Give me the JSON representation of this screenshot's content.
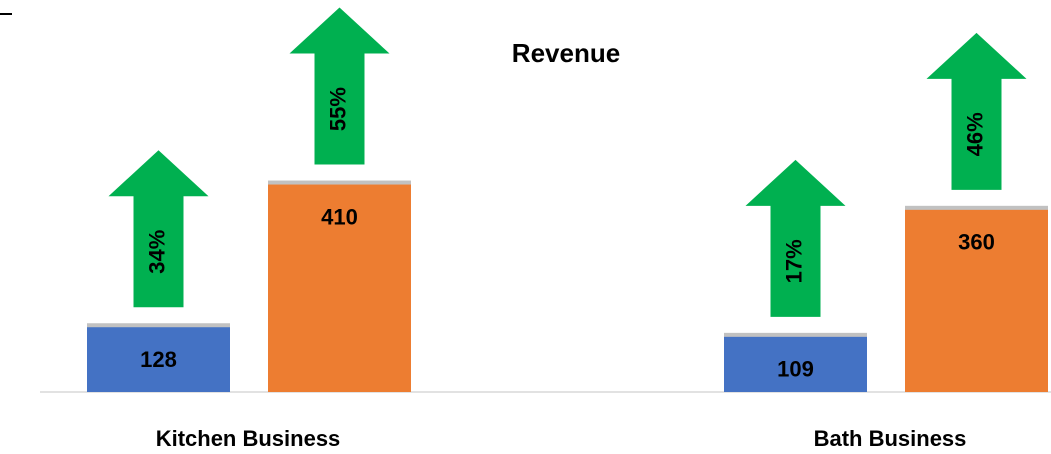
{
  "chart_data": {
    "type": "bar",
    "title": "Revenue",
    "categories": [
      "Kitchen Business",
      "Bath Business"
    ],
    "series": [
      {
        "color": "#4472c4",
        "values": [
          128,
          109
        ],
        "growth": [
          34,
          17
        ],
        "growth_labels": [
          "34%",
          "17%"
        ]
      },
      {
        "color": "#ed7d31",
        "values": [
          410,
          360
        ],
        "growth": [
          55,
          46
        ],
        "growth_labels": [
          "55%",
          "46%"
        ]
      }
    ],
    "arrow_color": "#00b050"
  }
}
